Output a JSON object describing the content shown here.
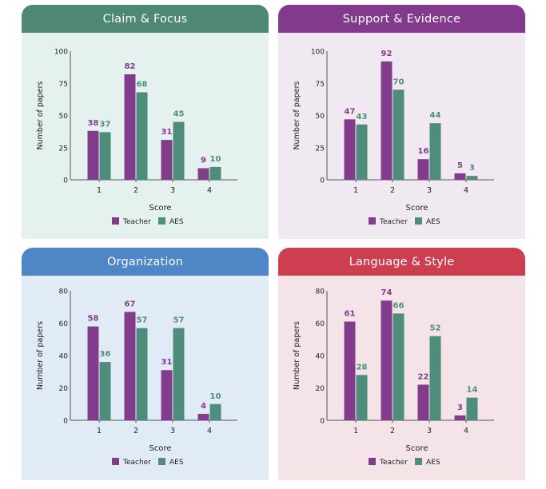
{
  "colors": {
    "teacher": "#833b8c",
    "aes": "#4e8d7b",
    "axis": "#555555",
    "text": "#222222"
  },
  "chart_data": [
    {
      "type": "bar",
      "title": "Claim & Focus",
      "header_color": "#4e8775",
      "bg_color": "#e4f1ef",
      "categories": [
        "1",
        "2",
        "3",
        "4"
      ],
      "series": [
        {
          "name": "Teacher",
          "values": [
            38,
            82,
            31,
            9
          ]
        },
        {
          "name": "AES",
          "values": [
            37,
            68,
            45,
            10
          ]
        }
      ],
      "xlabel": "Score",
      "ylabel": "Number of papers",
      "ylim": [
        0,
        100
      ],
      "yticks": [
        0,
        25,
        50,
        75,
        100
      ],
      "grid": false,
      "legend": "bottom"
    },
    {
      "type": "bar",
      "title": "Support & Evidence",
      "header_color": "#843a8c",
      "bg_color": "#f1e9f2",
      "categories": [
        "1",
        "2",
        "3",
        "4"
      ],
      "series": [
        {
          "name": "Teacher",
          "values": [
            47,
            92,
            16,
            5
          ]
        },
        {
          "name": "AES",
          "values": [
            43,
            70,
            44,
            3
          ]
        }
      ],
      "xlabel": "Score",
      "ylabel": "Number of papers",
      "ylim": [
        0,
        100
      ],
      "yticks": [
        0,
        25,
        50,
        75,
        100
      ],
      "grid": false,
      "legend": "bottom"
    },
    {
      "type": "bar",
      "title": "Organization",
      "header_color": "#4e86c6",
      "bg_color": "#e0ebf5",
      "categories": [
        "1",
        "2",
        "3",
        "4"
      ],
      "series": [
        {
          "name": "Teacher",
          "values": [
            58,
            67,
            31,
            4
          ]
        },
        {
          "name": "AES",
          "values": [
            36,
            57,
            57,
            10
          ]
        }
      ],
      "xlabel": "Score",
      "ylabel": "Number of papers",
      "ylim": [
        0,
        80
      ],
      "yticks": [
        0,
        20,
        40,
        60,
        80
      ],
      "grid": false,
      "legend": "bottom"
    },
    {
      "type": "bar",
      "title": "Language & Style",
      "header_color": "#cd3f50",
      "bg_color": "#f4e4e8",
      "categories": [
        "1",
        "2",
        "3",
        "4"
      ],
      "series": [
        {
          "name": "Teacher",
          "values": [
            61,
            74,
            22,
            3
          ]
        },
        {
          "name": "AES",
          "values": [
            28,
            66,
            52,
            14
          ]
        }
      ],
      "xlabel": "Score",
      "ylabel": "Number of papers",
      "ylim": [
        0,
        80
      ],
      "yticks": [
        0,
        20,
        40,
        60,
        80
      ],
      "grid": false,
      "legend": "bottom"
    }
  ]
}
